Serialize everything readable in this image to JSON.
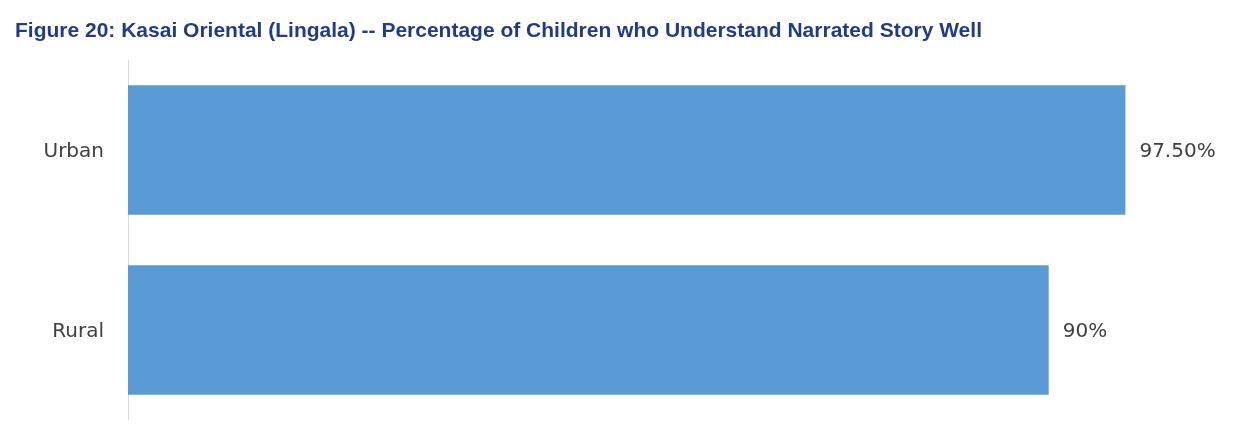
{
  "chart_data": {
    "type": "bar",
    "orientation": "horizontal",
    "title": "Figure 20: Kasai Oriental (Lingala) -- Percentage of Children who Understand Narrated Story Well",
    "categories": [
      "Urban",
      "Rural"
    ],
    "values": [
      97.5,
      90
    ],
    "value_labels": [
      "97.50%",
      "90%"
    ],
    "color": "#5b9bd5",
    "tick_labels": "y",
    "grid": false
  }
}
